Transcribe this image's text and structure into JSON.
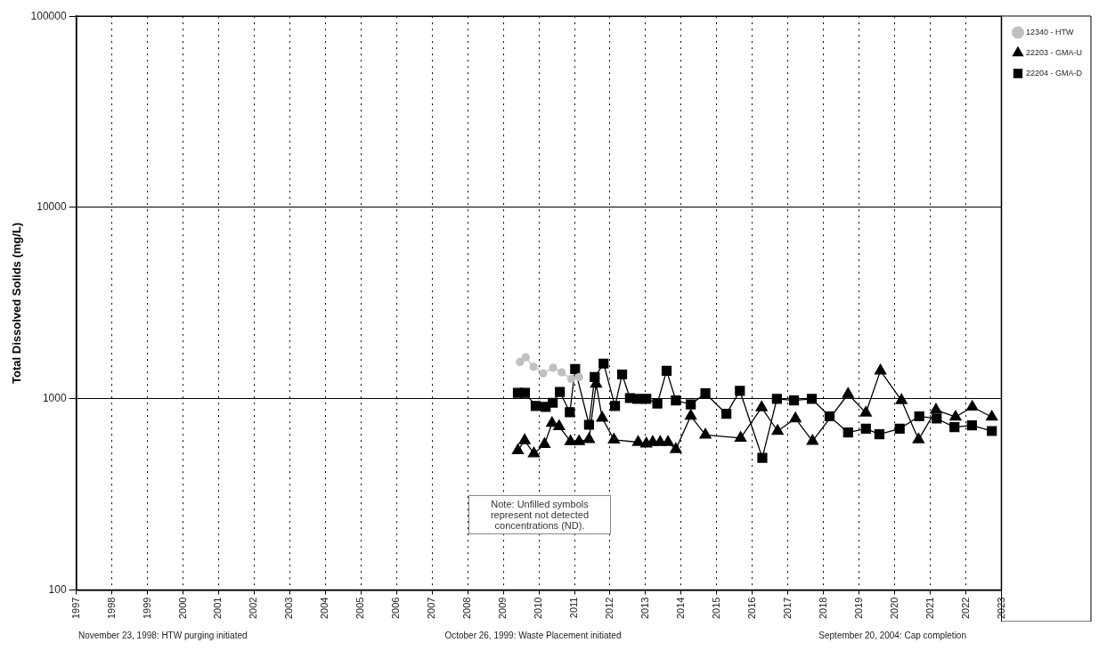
{
  "chart_data": {
    "type": "line",
    "ylabel": "Total Dissolved Solids (mg/L)",
    "log": "y",
    "grid": true,
    "legend": "top right",
    "xlim": [
      1997,
      2023
    ],
    "xticks": [
      1997,
      1998,
      1999,
      2000,
      2001,
      2002,
      2003,
      2004,
      2005,
      2006,
      2007,
      2008,
      2009,
      2010,
      2011,
      2012,
      2013,
      2014,
      2015,
      2016,
      2017,
      2018,
      2019,
      2020,
      2021,
      2022,
      2023
    ],
    "ylim": [
      100,
      100000
    ],
    "yticks": [
      100,
      1000,
      10000,
      100000
    ],
    "series": [
      {
        "name": "12340 - HTW",
        "color": "#c0c0c0",
        "marker": "circle",
        "x": [
          2009.47,
          2009.63,
          2009.85,
          2010.12,
          2010.4,
          2010.64,
          2010.91,
          2011.13
        ],
        "values": [
          1556,
          1646,
          1470,
          1358,
          1453,
          1374,
          1269,
          1298
        ]
      },
      {
        "name": "22203 - GMA-U",
        "color": "#000000",
        "marker": "triangle",
        "x": [
          2009.41,
          2009.6,
          2009.86,
          2010.16,
          2010.37,
          2010.57,
          2010.89,
          2011.13,
          2011.41,
          2011.61,
          2011.78,
          2012.11,
          2012.79,
          2013.02,
          2013.2,
          2013.41,
          2013.63,
          2013.85,
          2014.27,
          2014.68,
          2015.67,
          2016.26,
          2016.71,
          2017.21,
          2017.69,
          2018.69,
          2019.19,
          2019.6,
          2020.19,
          2020.67,
          2021.16,
          2021.71,
          2022.18,
          2022.73
        ],
        "values": [
          536,
          605,
          517,
          578,
          745,
          717,
          598,
          598,
          614,
          1195,
          794,
          610,
          593,
          582,
          593,
          593,
          593,
          544,
          813,
          647,
          623,
          900,
          678,
          788,
          600,
          1058,
          844,
          1400,
          981,
          612,
          873,
          803,
          906,
          803
        ]
      },
      {
        "name": "22204 - GMA-D",
        "color": "#000000",
        "marker": "square",
        "x": [
          2009.41,
          2009.61,
          2009.91,
          2010.19,
          2010.39,
          2010.59,
          2010.87,
          2011.02,
          2011.41,
          2011.57,
          2011.82,
          2012.14,
          2012.34,
          2012.56,
          2012.77,
          2013.02,
          2013.33,
          2013.59,
          2013.85,
          2014.27,
          2014.68,
          2015.27,
          2015.65,
          2016.28,
          2016.69,
          2017.17,
          2017.67,
          2018.17,
          2018.69,
          2019.19,
          2019.57,
          2020.14,
          2020.69,
          2021.18,
          2021.68,
          2022.17,
          2022.73
        ],
        "values": [
          1074,
          1074,
          916,
          906,
          953,
          1086,
          851,
          1431,
          731,
          1298,
          1527,
          916,
          1339,
          1008,
          998,
          998,
          945,
          1400,
          981,
          934,
          1067,
          834,
          1099,
          491,
          998,
          981,
          998,
          809,
          666,
          698,
          652,
          698,
          809,
          788,
          710,
          726,
          678
        ]
      }
    ],
    "annotations": [
      "Note: Unfilled symbols represent not detected concentrations (ND).",
      "November 23, 1998:  HTW purging initiated",
      "October 26, 1999:  Waste Placement initiated",
      "September 20, 2004:  Cap completion"
    ]
  }
}
